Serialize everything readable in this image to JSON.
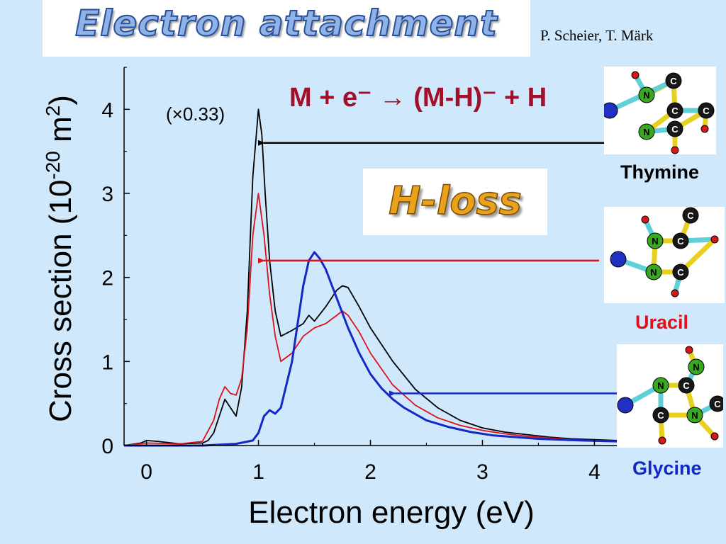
{
  "header": {
    "title": "Electron attachment",
    "authors": "P. Scheier, T. Märk"
  },
  "annotations": {
    "reaction": "M + e⁻ → (M-H)⁻ + H",
    "scale_note": "(×0.33)",
    "badge": "H-loss"
  },
  "molecules": [
    {
      "name": "Thymine",
      "color": "#000000",
      "atoms": [
        "H",
        "N",
        "C",
        "C",
        "C",
        "H",
        "N",
        "C",
        "H"
      ]
    },
    {
      "name": "Uracil",
      "color": "#e0101a",
      "atoms": [
        "H",
        "N",
        "C",
        "C",
        "H",
        "N",
        "C",
        "H"
      ]
    },
    {
      "name": "Glycine",
      "color": "#1428c8",
      "atoms": [
        "N",
        "C",
        "H",
        "N",
        "C",
        "H",
        "N",
        "C",
        "H"
      ]
    }
  ],
  "chart_data": {
    "type": "line",
    "title": "",
    "xlabel": "Electron energy (eV)",
    "ylabel_main": "Cross section (10",
    "ylabel_exp": "-20",
    "ylabel_unit": " m",
    "ylabel_sq": "2",
    "ylabel_close": ")",
    "xlim": [
      -0.2,
      4.2
    ],
    "ylim": [
      0,
      4.5
    ],
    "xticks": [
      0,
      1,
      2,
      3,
      4
    ],
    "xtick_labels": [
      "0",
      "1",
      "2",
      "3",
      "4"
    ],
    "yticks": [
      0,
      1,
      2,
      3,
      4
    ],
    "ytick_labels": [
      "0",
      "1",
      "2",
      "3",
      "4"
    ],
    "grid": false,
    "series": [
      {
        "name": "Thymine",
        "color": "#000000",
        "x": [
          -0.2,
          -0.05,
          0.0,
          0.1,
          0.3,
          0.5,
          0.55,
          0.6,
          0.65,
          0.7,
          0.75,
          0.8,
          0.85,
          0.9,
          0.95,
          1.0,
          1.03,
          1.06,
          1.1,
          1.15,
          1.2,
          1.3,
          1.4,
          1.45,
          1.5,
          1.6,
          1.7,
          1.75,
          1.8,
          1.9,
          2.0,
          2.2,
          2.4,
          2.6,
          2.8,
          3.0,
          3.2,
          3.4,
          3.6,
          3.8,
          4.0,
          4.2
        ],
        "y": [
          0.0,
          0.03,
          0.06,
          0.05,
          0.02,
          0.03,
          0.06,
          0.15,
          0.35,
          0.55,
          0.45,
          0.35,
          0.7,
          1.6,
          3.2,
          4.0,
          3.7,
          3.0,
          2.2,
          1.6,
          1.3,
          1.37,
          1.45,
          1.55,
          1.48,
          1.65,
          1.85,
          1.9,
          1.88,
          1.65,
          1.4,
          1.0,
          0.67,
          0.45,
          0.3,
          0.21,
          0.16,
          0.13,
          0.1,
          0.08,
          0.07,
          0.06
        ]
      },
      {
        "name": "Uracil",
        "color": "#e0101a",
        "x": [
          -0.2,
          0.0,
          0.3,
          0.5,
          0.6,
          0.65,
          0.7,
          0.75,
          0.8,
          0.85,
          0.9,
          0.95,
          1.0,
          1.05,
          1.1,
          1.15,
          1.2,
          1.3,
          1.4,
          1.5,
          1.6,
          1.7,
          1.75,
          1.8,
          1.9,
          2.0,
          2.2,
          2.4,
          2.6,
          2.8,
          3.0,
          3.2,
          3.4,
          3.6,
          3.8,
          4.0,
          4.2
        ],
        "y": [
          0.0,
          0.03,
          0.02,
          0.05,
          0.3,
          0.55,
          0.7,
          0.62,
          0.6,
          0.8,
          1.4,
          2.5,
          3.0,
          2.5,
          1.8,
          1.3,
          1.0,
          1.1,
          1.3,
          1.4,
          1.45,
          1.55,
          1.6,
          1.55,
          1.35,
          1.1,
          0.72,
          0.48,
          0.33,
          0.24,
          0.18,
          0.14,
          0.11,
          0.09,
          0.07,
          0.06,
          0.05
        ]
      },
      {
        "name": "Glycine",
        "color": "#1428c8",
        "x": [
          -0.2,
          0.0,
          0.5,
          0.8,
          0.95,
          1.0,
          1.05,
          1.1,
          1.15,
          1.2,
          1.3,
          1.4,
          1.45,
          1.5,
          1.55,
          1.6,
          1.7,
          1.8,
          1.9,
          2.0,
          2.1,
          2.2,
          2.3,
          2.5,
          2.7,
          2.9,
          3.1,
          3.3,
          3.5,
          3.7,
          3.9,
          4.2
        ],
        "y": [
          0.0,
          0.0,
          0.0,
          0.02,
          0.06,
          0.15,
          0.35,
          0.42,
          0.38,
          0.45,
          1.0,
          1.9,
          2.2,
          2.3,
          2.22,
          2.1,
          1.75,
          1.4,
          1.1,
          0.85,
          0.68,
          0.55,
          0.45,
          0.3,
          0.22,
          0.16,
          0.12,
          0.1,
          0.08,
          0.07,
          0.06,
          0.05
        ]
      }
    ],
    "arrows": [
      {
        "series": "Thymine",
        "color": "#000000",
        "y_data": 3.6
      },
      {
        "series": "Uracil",
        "color": "#e0101a",
        "y_data": 2.2
      },
      {
        "series": "Glycine",
        "color": "#1428c8",
        "y_data": 0.62
      }
    ]
  }
}
